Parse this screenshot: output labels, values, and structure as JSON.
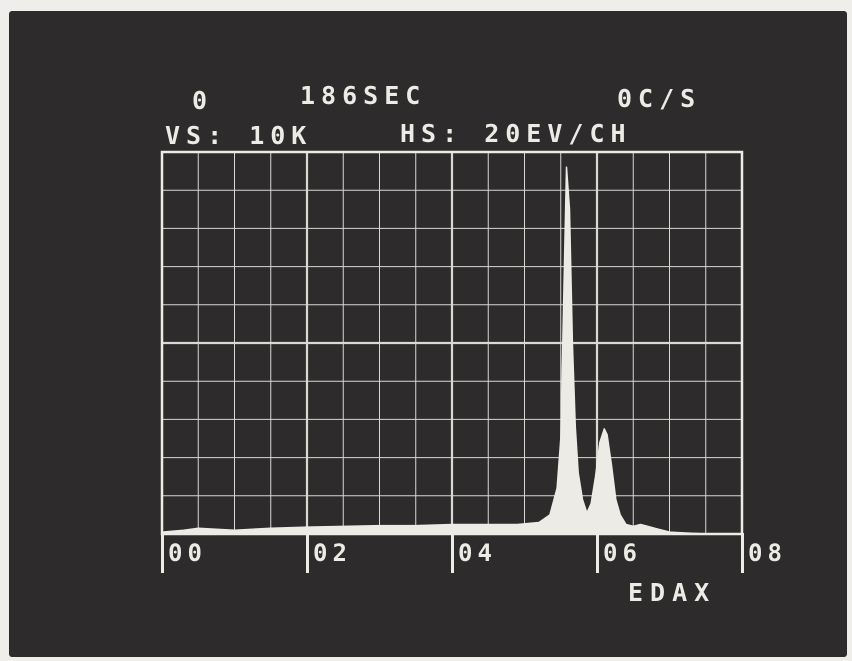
{
  "header": {
    "counts": "0",
    "live_time": "186SEC",
    "count_rate": "0C/S",
    "vertical_scale": "VS: 10K",
    "horizontal_scale": "HS: 20EV/CH"
  },
  "brand": "EDAX",
  "colors": {
    "screen": "#2d2b2c",
    "trace": "#ecebe6",
    "grid": "#d9d8d2"
  },
  "chart_data": {
    "type": "area",
    "title": "",
    "xlabel": "",
    "ylabel": "",
    "xlim": [
      0,
      8
    ],
    "ylim": [
      0,
      10
    ],
    "x_ticks": [
      "00",
      "02",
      "04",
      "06",
      "08"
    ],
    "grid": true,
    "series": [
      {
        "x": [
          0.0,
          0.3,
          0.5,
          1.0,
          1.5,
          2.0,
          2.5,
          3.0,
          3.5,
          4.0,
          4.5,
          4.9,
          5.2,
          5.35,
          5.45,
          5.5,
          5.54,
          5.58,
          5.62,
          5.66,
          5.7,
          5.74,
          5.8,
          5.86,
          5.92,
          5.98,
          6.04,
          6.1,
          6.14,
          6.2,
          6.26,
          6.32,
          6.4,
          6.5,
          6.6,
          6.7,
          6.8,
          6.9,
          7.0,
          7.5,
          8.0
        ],
        "y": [
          0.05,
          0.1,
          0.15,
          0.1,
          0.15,
          0.18,
          0.2,
          0.22,
          0.22,
          0.25,
          0.25,
          0.25,
          0.3,
          0.5,
          1.2,
          2.5,
          6.0,
          9.6,
          8.5,
          5.0,
          2.8,
          1.6,
          0.9,
          0.55,
          0.8,
          1.5,
          2.4,
          2.75,
          2.6,
          1.8,
          0.9,
          0.5,
          0.25,
          0.2,
          0.25,
          0.2,
          0.15,
          0.1,
          0.05,
          0.0,
          0.0
        ]
      }
    ]
  }
}
